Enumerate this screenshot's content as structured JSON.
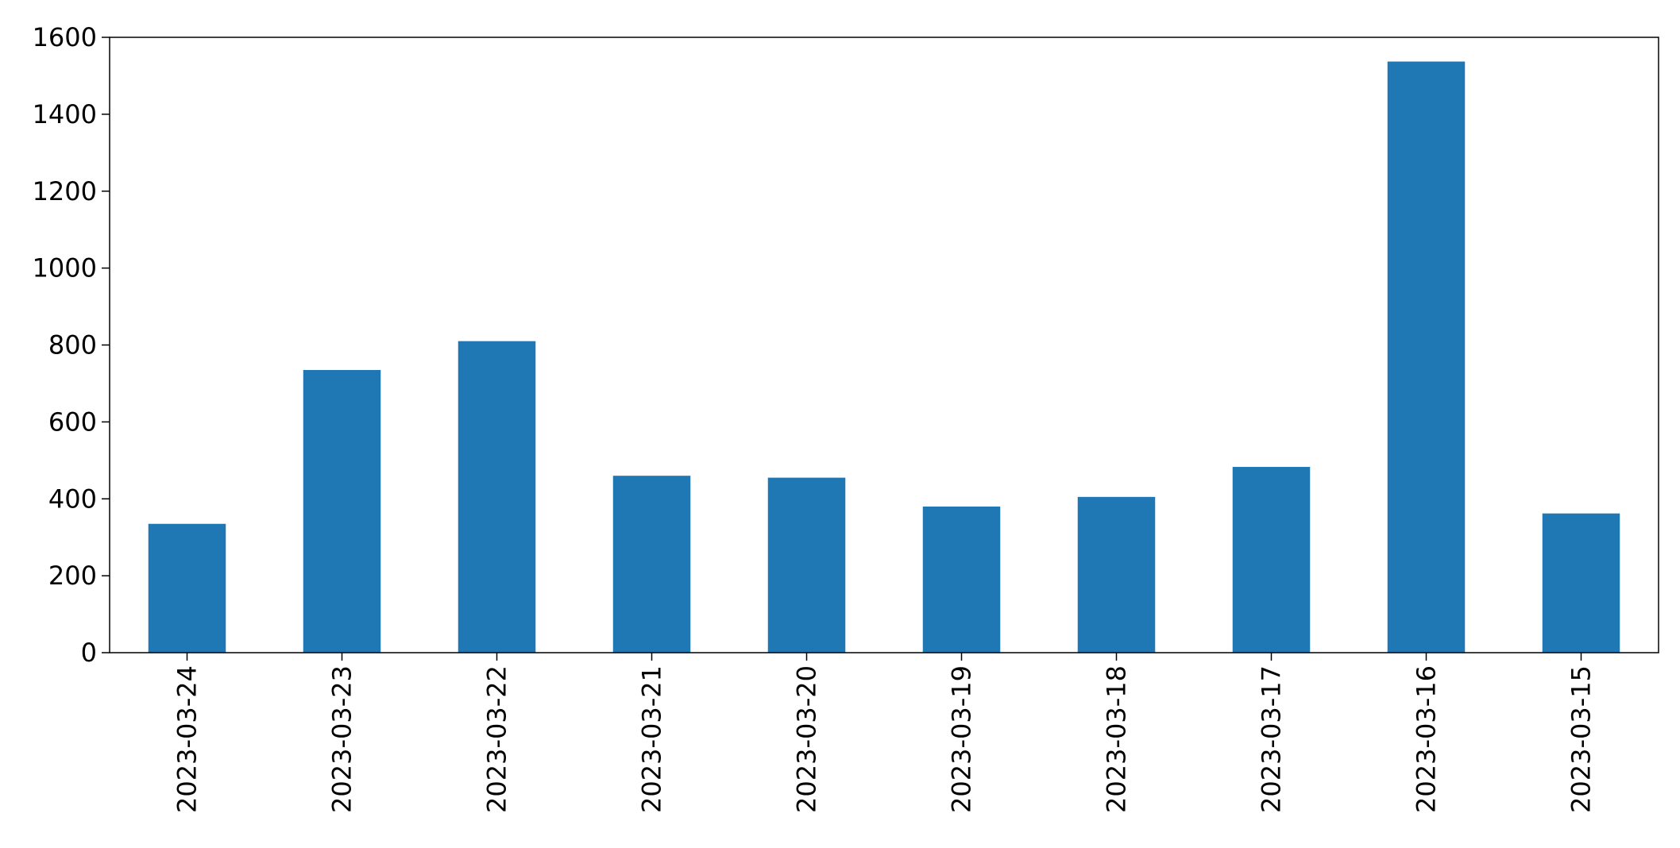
{
  "chart_data": {
    "type": "bar",
    "title": "",
    "xlabel": "",
    "ylabel": "",
    "categories": [
      "2023-03-24",
      "2023-03-23",
      "2023-03-22",
      "2023-03-21",
      "2023-03-20",
      "2023-03-19",
      "2023-03-18",
      "2023-03-17",
      "2023-03-16",
      "2023-03-15"
    ],
    "values": [
      335,
      735,
      810,
      460,
      455,
      380,
      405,
      483,
      1537,
      362
    ],
    "ylim": [
      0,
      1600
    ],
    "yticks": [
      "0",
      "200",
      "400",
      "600",
      "800",
      "1000",
      "1200",
      "1400",
      "1600"
    ],
    "grid": false,
    "legend": "none",
    "bar_color": "#1f77b4"
  }
}
